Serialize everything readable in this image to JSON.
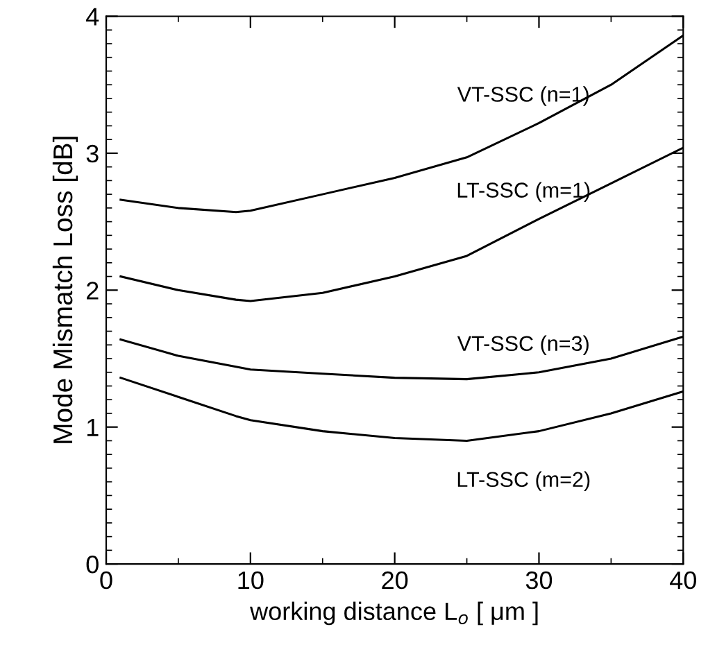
{
  "chart_data": {
    "type": "line",
    "xlabel": "working distance L$_{o}$ [ μm ]",
    "ylabel": "Mode Mismatch Loss [dB]",
    "xlim": [
      0,
      40
    ],
    "ylim": [
      0,
      4
    ],
    "xticks": [
      0,
      10,
      20,
      30,
      40
    ],
    "yticks": [
      0,
      1,
      2,
      3,
      4
    ],
    "grid": false,
    "legend": false,
    "marker": "none",
    "line_style": "solid",
    "x": [
      1,
      5,
      9,
      10,
      15,
      20,
      25,
      30,
      35,
      40
    ],
    "series": [
      {
        "name": "VT-SSC (n=1)",
        "color": "#000000",
        "values": [
          2.66,
          2.6,
          2.57,
          2.58,
          2.7,
          2.82,
          2.97,
          3.22,
          3.5,
          3.86
        ]
      },
      {
        "name": "LT-SSC (m=1)",
        "color": "#000000",
        "values": [
          2.1,
          2.0,
          1.93,
          1.92,
          1.98,
          2.1,
          2.25,
          2.52,
          2.78,
          3.04
        ]
      },
      {
        "name": "VT-SSC (n=3)",
        "color": "#000000",
        "values": [
          1.64,
          1.52,
          1.44,
          1.42,
          1.39,
          1.36,
          1.35,
          1.4,
          1.5,
          1.66
        ]
      },
      {
        "name": "LT-SSC (m=2)",
        "color": "#000000",
        "values": [
          1.36,
          1.22,
          1.08,
          1.05,
          0.97,
          0.92,
          0.9,
          0.97,
          1.1,
          1.26
        ]
      }
    ]
  }
}
